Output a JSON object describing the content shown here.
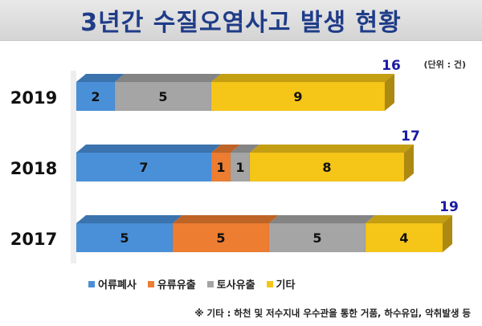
{
  "title": "3년간 수질오염사고 발생 현황",
  "unit": "(단위 : 건)",
  "footnote": "※ 기타 : 하천 및 저수지내 우수관을 통한 거품, 하수유입, 악취발생 등",
  "colors": {
    "어류폐사": "#4a90d9",
    "유류유출": "#ed7d31",
    "토사유출": "#a5a5a5",
    "기타": "#f5c518",
    "total_label": "#1a1aa6"
  },
  "chart_data": {
    "type": "bar",
    "orientation": "horizontal",
    "stacked": true,
    "categories": [
      "2019",
      "2018",
      "2017"
    ],
    "series": [
      {
        "name": "어류폐사",
        "values": [
          2,
          7,
          5
        ]
      },
      {
        "name": "유류유출",
        "values": [
          0,
          1,
          5
        ]
      },
      {
        "name": "토사유출",
        "values": [
          5,
          1,
          5
        ]
      },
      {
        "name": "기타",
        "values": [
          9,
          8,
          4
        ]
      }
    ],
    "totals": [
      16,
      17,
      19
    ],
    "legend_position": "bottom"
  }
}
